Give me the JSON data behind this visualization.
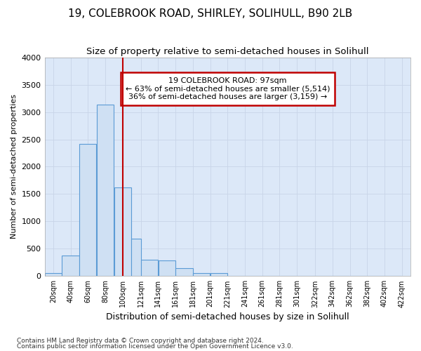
{
  "title1": "19, COLEBROOK ROAD, SHIRLEY, SOLIHULL, B90 2LB",
  "title2": "Size of property relative to semi-detached houses in Solihull",
  "xlabel": "Distribution of semi-detached houses by size in Solihull",
  "ylabel": "Number of semi-detached properties",
  "footnote1": "Contains HM Land Registry data © Crown copyright and database right 2024.",
  "footnote2": "Contains public sector information licensed under the Open Government Licence v3.0.",
  "annotation_line1": "19 COLEBROOK ROAD: 97sqm",
  "annotation_line2": "← 63% of semi-detached houses are smaller (5,514)",
  "annotation_line3": "36% of semi-detached houses are larger (3,159) →",
  "bar_left_edges": [
    10,
    30,
    50,
    70,
    90,
    110,
    121,
    141,
    161,
    181,
    201,
    221,
    241,
    261,
    281,
    301,
    322,
    342,
    362,
    382,
    402
  ],
  "bar_widths": [
    20,
    20,
    20,
    20,
    20,
    11,
    20,
    20,
    20,
    20,
    20,
    20,
    20,
    20,
    20,
    21,
    20,
    20,
    20,
    20,
    20
  ],
  "bar_heights": [
    50,
    380,
    2420,
    3130,
    1620,
    680,
    300,
    290,
    140,
    60,
    55,
    0,
    0,
    0,
    0,
    0,
    0,
    0,
    0,
    0,
    0
  ],
  "bar_color": "#cfe0f3",
  "bar_edge_color": "#5b9bd5",
  "vline_x": 100,
  "vline_color": "#c00000",
  "ylim": [
    0,
    4000
  ],
  "yticks": [
    0,
    500,
    1000,
    1500,
    2000,
    2500,
    3000,
    3500,
    4000
  ],
  "xtick_labels": [
    "20sqm",
    "40sqm",
    "60sqm",
    "80sqm",
    "100sqm",
    "121sqm",
    "141sqm",
    "161sqm",
    "181sqm",
    "201sqm",
    "221sqm",
    "241sqm",
    "261sqm",
    "281sqm",
    "301sqm",
    "322sqm",
    "342sqm",
    "362sqm",
    "382sqm",
    "402sqm",
    "422sqm"
  ],
  "xtick_positions": [
    20,
    40,
    60,
    80,
    100,
    121,
    141,
    161,
    181,
    201,
    221,
    241,
    261,
    281,
    301,
    322,
    342,
    362,
    382,
    402,
    422
  ],
  "grid_color": "#c8d4e8",
  "bg_color": "#dce8f8",
  "annotation_box_color": "#c00000",
  "title1_fontsize": 11,
  "title2_fontsize": 9.5
}
